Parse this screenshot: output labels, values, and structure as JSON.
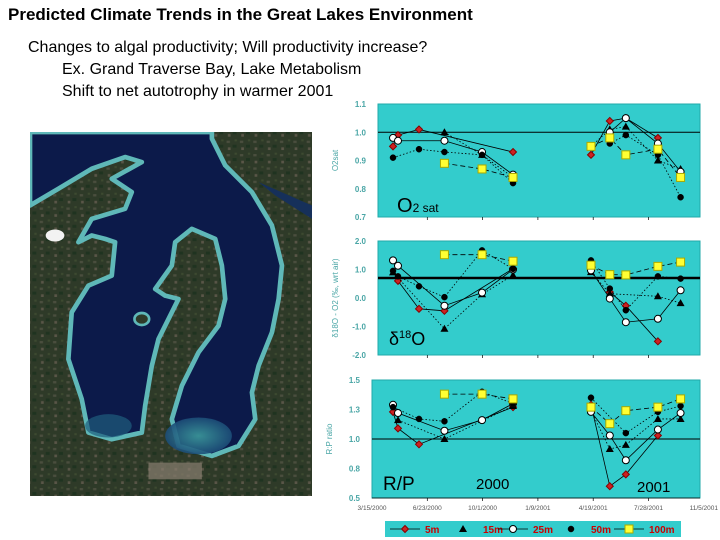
{
  "title": "Predicted Climate Trends in the Great Lakes Environment",
  "bullets": [
    "Changes to algal productivity; Will productivity increase?",
    "Ex. Grand Traverse Bay, Lake Metabolism",
    "Shift to net autotrophy in warmer 2001"
  ],
  "colors": {
    "panel": "#33cccc",
    "tick_label": "#4aa6a6",
    "legend_text": "#cc0000"
  },
  "chart_data": {
    "type": "line",
    "x_dates": [
      "2000-04-22",
      "2000-05-01",
      "2000-06-08",
      "2000-07-24",
      "2000-09-30",
      "2000-11-25",
      "2001-04-15",
      "2001-05-19",
      "2001-06-17",
      "2001-08-14",
      "2001-09-24"
    ],
    "x_ticks": [
      "3/15/2000",
      "6/23/2000",
      "10/1/2000",
      "1/9/2001",
      "4/19/2001",
      "7/28/2001",
      "11/5/2001"
    ],
    "legend": {
      "placement": "bottom",
      "entries": [
        {
          "name": "5m",
          "marker": "diamond",
          "color": "#cc2222",
          "line": "solid"
        },
        {
          "name": "15m",
          "marker": "triangle",
          "color": "#000000",
          "line": "dotted"
        },
        {
          "name": "25m",
          "marker": "circle",
          "color": "#ffffff",
          "line": "solid"
        },
        {
          "name": "50m",
          "marker": "circle",
          "color": "#000000",
          "line": "dotted"
        },
        {
          "name": "100m",
          "marker": "square",
          "color": "#ffff33",
          "line": "dashed"
        }
      ]
    },
    "panels": [
      {
        "ylabel": "O2sat",
        "ylim": [
          0.7,
          1.1
        ],
        "yticks": [
          0.7,
          0.8,
          0.9,
          1.0,
          1.1
        ],
        "ytick_labels": [
          "0.7",
          "0.8",
          "0.9",
          "1.0",
          "1.1"
        ],
        "ref_line": 1.0,
        "annotation": {
          "main": "O",
          "sub": "2",
          "rest": " sat"
        },
        "series": [
          {
            "name": "5m",
            "values": [
              0.95,
              0.99,
              1.01,
              null,
              null,
              0.93,
              0.92,
              1.04,
              1.05,
              0.98,
              null
            ]
          },
          {
            "name": "15m",
            "values": [
              null,
              null,
              null,
              1.0,
              0.92,
              0.84,
              0.95,
              1.01,
              1.02,
              0.9,
              0.87
            ]
          },
          {
            "name": "25m",
            "values": [
              0.98,
              0.97,
              null,
              0.97,
              0.93,
              0.85,
              null,
              1.0,
              1.05,
              0.96,
              0.86
            ]
          },
          {
            "name": "50m",
            "values": [
              0.91,
              null,
              0.94,
              0.93,
              0.92,
              0.82,
              null,
              0.96,
              0.99,
              0.92,
              0.77
            ]
          },
          {
            "name": "100m",
            "values": [
              null,
              null,
              null,
              0.89,
              0.87,
              0.84,
              0.95,
              0.98,
              0.92,
              0.94,
              0.84
            ]
          }
        ]
      },
      {
        "ylabel": "δ18O - O2 (‰, wrt air)",
        "ylim": [
          -2.0,
          2.0
        ],
        "yticks": [
          -2,
          -1,
          0,
          1,
          2
        ],
        "ytick_labels": [
          "-2.0",
          "-1.0",
          "0.0",
          "1.0",
          "2.0"
        ],
        "ref_line": 0.7,
        "annotation": {
          "main": "δ",
          "sup": "18",
          "rest": "O"
        },
        "series": [
          {
            "name": "5m",
            "values": [
              null,
              0.6,
              -0.38,
              -0.45,
              null,
              1.03,
              null,
              0.21,
              -0.27,
              -1.52,
              null
            ]
          },
          {
            "name": "15m",
            "values": [
              0.9,
              null,
              null,
              -1.08,
              0.13,
              0.8,
              0.91,
              0.15,
              null,
              0.06,
              -0.18
            ]
          },
          {
            "name": "25m",
            "values": [
              1.32,
              1.13,
              null,
              -0.27,
              0.19,
              1.0,
              0.97,
              -0.02,
              -0.85,
              -0.73,
              0.27
            ]
          },
          {
            "name": "50m",
            "values": [
              0.95,
              0.76,
              0.41,
              0.03,
              1.67,
              1.02,
              1.32,
              0.33,
              -0.43,
              0.76,
              0.68
            ]
          },
          {
            "name": "100m",
            "values": [
              null,
              null,
              null,
              1.52,
              1.52,
              1.29,
              1.15,
              0.82,
              0.81,
              1.11,
              1.26
            ]
          }
        ]
      },
      {
        "ylabel": "R:P ratio",
        "ylim": [
          0.5,
          1.5
        ],
        "yticks": [
          0.5,
          0.75,
          1.0,
          1.25,
          1.5
        ],
        "ytick_labels": [
          "0.5",
          "0.8",
          "1.0",
          "1.3",
          "1.5"
        ],
        "ref_line": 1.0,
        "annotation": {
          "main": "R/P",
          "year1": "2000",
          "year2": "2001"
        },
        "series": [
          {
            "name": "5m",
            "values": [
              1.23,
              1.09,
              0.955,
              null,
              null,
              1.27,
              1.29,
              0.6,
              0.7,
              1.03,
              null
            ]
          },
          {
            "name": "15m",
            "values": [
              null,
              1.16,
              null,
              1.0,
              null,
              1.28,
              1.24,
              0.915,
              0.95,
              1.17,
              1.17
            ]
          },
          {
            "name": "25m",
            "values": [
              1.29,
              1.22,
              null,
              1.07,
              1.16,
              1.3,
              1.23,
              1.03,
              0.82,
              1.08,
              1.22
            ]
          },
          {
            "name": "50m",
            "values": [
              1.27,
              null,
              1.17,
              1.15,
              1.4,
              1.3,
              1.35,
              null,
              1.05,
              1.23,
              1.28
            ]
          },
          {
            "name": "100m",
            "values": [
              null,
              null,
              null,
              1.38,
              1.38,
              1.34,
              1.27,
              1.13,
              1.24,
              1.27,
              1.34
            ]
          }
        ]
      }
    ]
  }
}
